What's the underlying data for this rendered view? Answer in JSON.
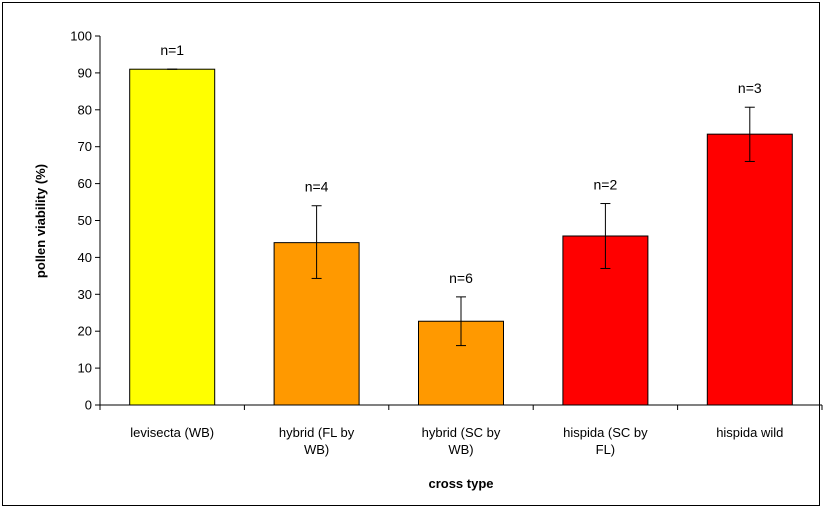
{
  "chart_data": {
    "type": "bar",
    "title": "",
    "xlabel": "cross type",
    "ylabel": "pollen viability (%)",
    "ylim": [
      0,
      100
    ],
    "ytick_step": 10,
    "grid": false,
    "legend": "none",
    "categories": [
      [
        "levisecta (WB)"
      ],
      [
        "hybrid (FL by",
        "WB)"
      ],
      [
        "hybrid (SC by",
        "WB)"
      ],
      [
        "hispida (SC by",
        "FL)"
      ],
      [
        "hispida wild"
      ]
    ],
    "values": [
      91,
      44,
      22.7,
      45.8,
      73.4
    ],
    "error_low": [
      91,
      34.3,
      16.1,
      37,
      66
    ],
    "error_high": [
      91,
      54,
      29.3,
      54.6,
      80.7
    ],
    "n_labels": [
      "n=1",
      "n=4",
      "n=6",
      "n=2",
      "n=3"
    ],
    "colors": [
      "#ffff00",
      "#ff9900",
      "#ff9900",
      "#ff0000",
      "#ff0000"
    ]
  }
}
